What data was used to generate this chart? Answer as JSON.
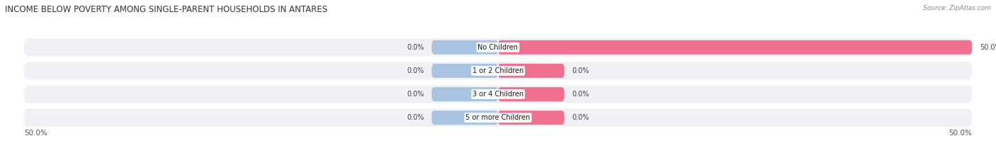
{
  "title": "INCOME BELOW POVERTY AMONG SINGLE-PARENT HOUSEHOLDS IN ANTARES",
  "source_text": "Source: ZipAtlas.com",
  "categories": [
    "No Children",
    "1 or 2 Children",
    "3 or 4 Children",
    "5 or more Children"
  ],
  "single_father_values": [
    0.0,
    0.0,
    0.0,
    0.0
  ],
  "single_mother_values": [
    50.0,
    0.0,
    0.0,
    0.0
  ],
  "x_min": -50.0,
  "x_max": 50.0,
  "father_color": "#a8c4e0",
  "mother_color": "#f07090",
  "bar_bg_color": "#e8e8f0",
  "fig_bg_color": "#ffffff",
  "row_bg_color": "#f0f0f5",
  "title_fontsize": 8.5,
  "label_fontsize": 7,
  "axis_label_fontsize": 7.5,
  "legend_fontsize": 7.5,
  "bar_height": 0.6,
  "small_bar_width": 7.0,
  "bottom_left_label": "50.0%",
  "bottom_right_label": "50.0%"
}
